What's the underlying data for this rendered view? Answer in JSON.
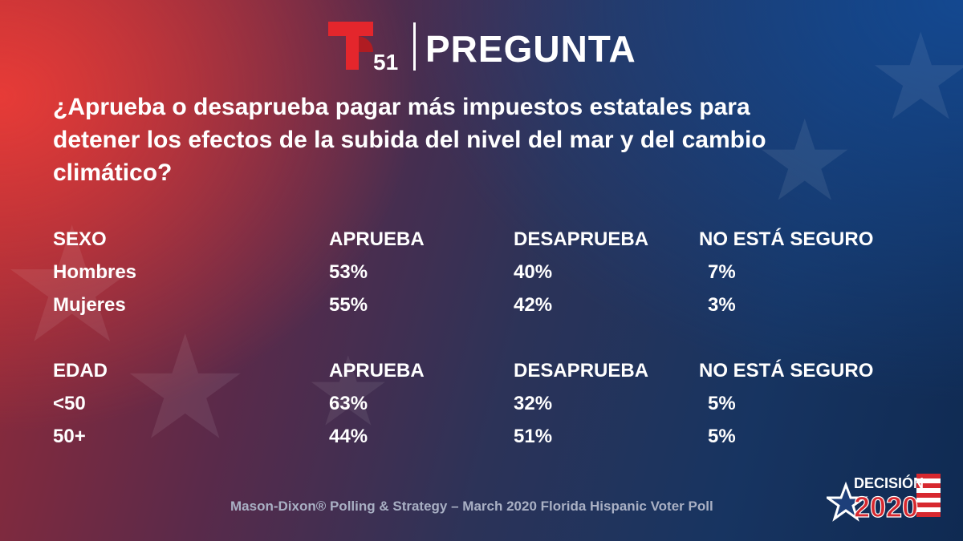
{
  "header": {
    "logo_text": "51",
    "title": "PREGUNTA"
  },
  "question": "¿Aprueba o desaprueba pagar más impuestos estatales para detener los efectos de la subida del nivel del mar y del cambio climático?",
  "sections": [
    {
      "headers": [
        "SEXO",
        "APRUEBA",
        "DESAPRUEBA",
        "NO ESTÁ SEGURO"
      ],
      "rows": [
        [
          "Hombres",
          "53%",
          "40%",
          "7%"
        ],
        [
          "Mujeres",
          "55%",
          "42%",
          "3%"
        ]
      ]
    },
    {
      "headers": [
        "EDAD",
        "APRUEBA",
        "DESAPRUEBA",
        "NO ESTÁ SEGURO"
      ],
      "rows": [
        [
          "<50",
          "63%",
          "32%",
          "5%"
        ],
        [
          "50+",
          "44%",
          "51%",
          "5%"
        ]
      ]
    }
  ],
  "footer": {
    "source": "Mason-Dixon® Polling & Strategy – March 2020 Florida Hispanic Voter Poll"
  },
  "badge": {
    "line1": "DECISIÓN",
    "line2": "2020"
  },
  "colors": {
    "logo_red": "#e4262c",
    "footer_text": "#a9b0c4",
    "badge_blue": "#1d3f7a"
  }
}
